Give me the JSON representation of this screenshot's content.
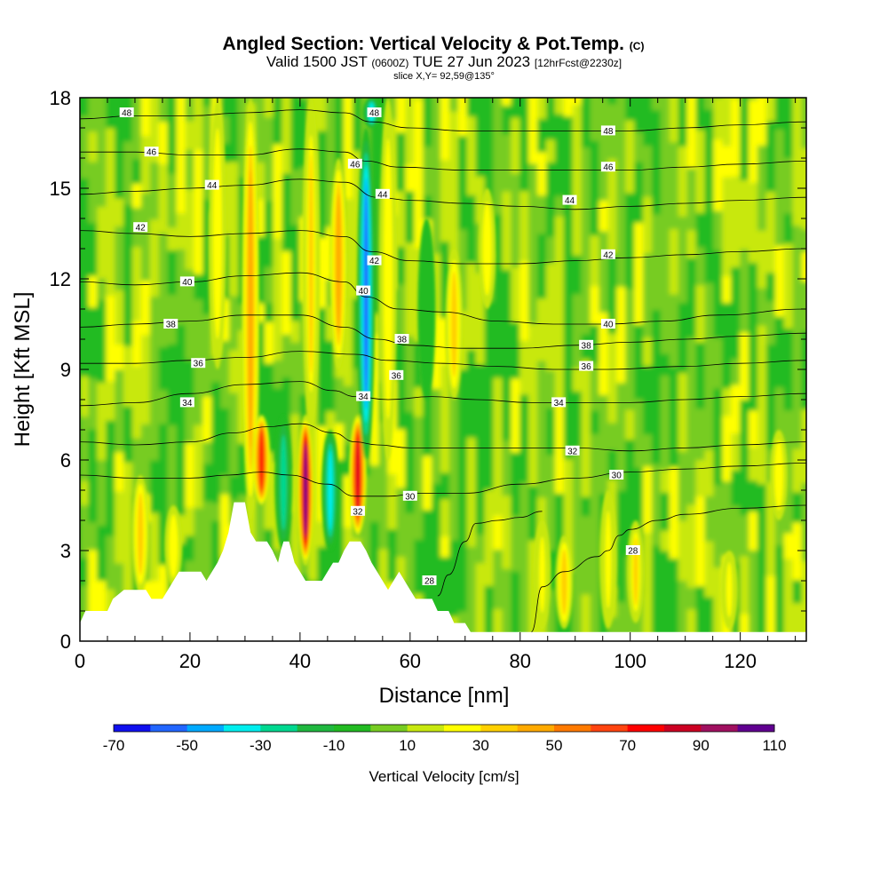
{
  "chart_data": {
    "type": "heatmap",
    "title": "Angled Section: Vertical Velocity & Pot.Temp.",
    "title_suffix": "(C)",
    "subtitle_valid": "Valid 1500 JST",
    "subtitle_zulu": "(0600Z)",
    "subtitle_date": "TUE 27 Jun 2023",
    "subtitle_fcst": "[12hrFcst@2230z]",
    "slice_label": "slice X,Y= 92,59@135°",
    "xlabel": "Distance [nm]",
    "ylabel": "Height [Kft MSL]",
    "xlim": [
      0,
      132
    ],
    "ylim": [
      0,
      18
    ],
    "x_ticks": [
      0,
      20,
      40,
      60,
      80,
      100,
      120
    ],
    "y_ticks": [
      0,
      3,
      6,
      9,
      12,
      15,
      18
    ],
    "x_tick_labels": [
      "0",
      "20",
      "40",
      "60",
      "80",
      "100",
      "120"
    ],
    "y_tick_labels": [
      "0",
      "3",
      "6",
      "9",
      "12",
      "15",
      "18"
    ],
    "colorbar": {
      "label": "Vertical Velocity [cm/s]",
      "min": -70,
      "max": 110,
      "step": 10,
      "tick_values": [
        -70,
        -50,
        -30,
        -10,
        10,
        30,
        50,
        70,
        90,
        110
      ],
      "tick_labels": [
        "-70",
        "-50",
        "-30",
        "-10",
        "10",
        "30",
        "50",
        "70",
        "90",
        "110"
      ],
      "colors": [
        "#1010ee",
        "#2266ff",
        "#00aaff",
        "#00eeee",
        "#00d890",
        "#20b840",
        "#22bb22",
        "#77cc22",
        "#c8e810",
        "#ffff00",
        "#ffd000",
        "#ffaa00",
        "#ff7a00",
        "#ff4410",
        "#ff0000",
        "#cc0022",
        "#a01060",
        "#600090"
      ]
    },
    "updrafts": [
      {
        "x": 11,
        "z0": 1.6,
        "z1": 5.5,
        "w": 30
      },
      {
        "x": 17,
        "z0": 1.8,
        "z1": 4.5,
        "w": 20
      },
      {
        "x": 25,
        "z0": 9,
        "z1": 18,
        "w": 20
      },
      {
        "x": 31,
        "z0": 4.0,
        "z1": 18,
        "w": 40
      },
      {
        "x": 33,
        "z0": 4.5,
        "z1": 7.5,
        "w": 70
      },
      {
        "x": 41,
        "z0": 2.5,
        "z1": 7.5,
        "w": 105
      },
      {
        "x": 42,
        "z0": 7,
        "z1": 18,
        "w": 35
      },
      {
        "x": 47,
        "z0": 9,
        "z1": 16,
        "w": 40
      },
      {
        "x": 50.5,
        "z0": 3.5,
        "z1": 7.5,
        "w": 80
      },
      {
        "x": 56,
        "z0": 6,
        "z1": 18,
        "w": 20
      },
      {
        "x": 68,
        "z0": 8,
        "z1": 13,
        "w": 30
      },
      {
        "x": 74,
        "z0": 11,
        "z1": 15,
        "w": 20
      },
      {
        "x": 84,
        "z0": 0.4,
        "z1": 4,
        "w": 25
      },
      {
        "x": 88,
        "z0": 0.4,
        "z1": 3.5,
        "w": 30
      },
      {
        "x": 96,
        "z0": 0.4,
        "z1": 5,
        "w": 25
      },
      {
        "x": 101,
        "z0": 0.6,
        "z1": 4,
        "w": 35
      },
      {
        "x": 118,
        "z0": 0.4,
        "z1": 3,
        "w": 25
      },
      {
        "x": 127,
        "z0": 4,
        "z1": 7,
        "w": 20
      }
    ],
    "downdrafts": [
      {
        "x": 37,
        "z0": 3,
        "z1": 7.5,
        "w": -30
      },
      {
        "x": 45.5,
        "z0": 3,
        "z1": 7,
        "w": -35
      },
      {
        "x": 52,
        "z0": 6,
        "z1": 17,
        "w": -60
      },
      {
        "x": 53,
        "z0": 17,
        "z1": 18,
        "w": -40
      },
      {
        "x": 63,
        "z0": 8,
        "z1": 14,
        "w": -10
      }
    ],
    "terrain": [
      [
        0,
        0.6
      ],
      [
        1,
        1.0
      ],
      [
        5,
        1.0
      ],
      [
        6,
        1.4
      ],
      [
        8,
        1.7
      ],
      [
        12,
        1.7
      ],
      [
        13,
        1.4
      ],
      [
        15,
        1.4
      ],
      [
        16,
        1.7
      ],
      [
        17,
        2.0
      ],
      [
        18,
        2.3
      ],
      [
        22,
        2.3
      ],
      [
        23,
        2.0
      ],
      [
        24,
        2.3
      ],
      [
        25,
        2.6
      ],
      [
        26,
        3.0
      ],
      [
        27,
        3.6
      ],
      [
        28,
        4.6
      ],
      [
        30,
        4.6
      ],
      [
        31,
        3.6
      ],
      [
        32,
        3.3
      ],
      [
        34,
        3.3
      ],
      [
        35,
        3.0
      ],
      [
        36,
        2.6
      ],
      [
        36.5,
        3.0
      ],
      [
        37,
        3.3
      ],
      [
        38,
        3.3
      ],
      [
        39,
        2.6
      ],
      [
        40,
        2.3
      ],
      [
        41,
        2.0
      ],
      [
        44,
        2.0
      ],
      [
        45,
        2.3
      ],
      [
        46,
        2.6
      ],
      [
        47,
        2.6
      ],
      [
        48,
        3.0
      ],
      [
        49,
        3.3
      ],
      [
        51,
        3.3
      ],
      [
        52,
        3.0
      ],
      [
        53,
        2.6
      ],
      [
        54,
        2.3
      ],
      [
        55,
        2.0
      ],
      [
        56,
        1.7
      ],
      [
        57,
        2.0
      ],
      [
        58,
        2.3
      ],
      [
        59,
        2.0
      ],
      [
        60,
        1.7
      ],
      [
        61,
        1.4
      ],
      [
        64,
        1.4
      ],
      [
        65,
        1.0
      ],
      [
        67,
        1.0
      ],
      [
        68,
        0.6
      ],
      [
        70,
        0.6
      ],
      [
        71,
        0.3
      ],
      [
        132,
        0.3
      ]
    ],
    "isentropes": [
      {
        "theta": 28,
        "pts": [
          [
            82,
            0.3
          ],
          [
            84,
            1.8
          ],
          [
            88,
            2.3
          ],
          [
            94,
            2.8
          ],
          [
            96,
            3.0
          ],
          [
            98,
            3.5
          ],
          [
            100,
            3.7
          ],
          [
            105,
            4.0
          ],
          [
            110,
            4.2
          ],
          [
            120,
            4.4
          ],
          [
            132,
            4.5
          ]
        ],
        "label": "28",
        "label_at": [
          3,
          100
        ]
      },
      {
        "theta": 28,
        "pts": [
          [
            65,
            1.5
          ],
          [
            67,
            2.2
          ],
          [
            70,
            3.3
          ],
          [
            72,
            3.9
          ],
          [
            76,
            4.0
          ],
          [
            80,
            4.1
          ],
          [
            84,
            4.3
          ]
        ],
        "label": "28",
        "label_at": [
          2.0,
          64.5
        ]
      },
      {
        "theta": 30,
        "pts": [
          [
            0,
            5.5
          ],
          [
            10,
            5.4
          ],
          [
            20,
            5.4
          ],
          [
            27,
            5.5
          ],
          [
            33,
            5.6
          ],
          [
            38,
            5.5
          ],
          [
            45,
            5.2
          ],
          [
            50,
            4.8
          ],
          [
            56,
            4.8
          ],
          [
            62,
            4.9
          ],
          [
            70,
            4.9
          ],
          [
            80,
            5.2
          ],
          [
            90,
            5.4
          ],
          [
            100,
            5.6
          ],
          [
            110,
            5.7
          ],
          [
            120,
            5.8
          ],
          [
            132,
            5.9
          ]
        ],
        "label": "30",
        "label_at": [
          4.8,
          59
        ]
      },
      {
        "theta": 32,
        "pts": [
          [
            0,
            6.6
          ],
          [
            10,
            6.5
          ],
          [
            20,
            6.6
          ],
          [
            28,
            6.9
          ],
          [
            34,
            7.1
          ],
          [
            40,
            7.2
          ],
          [
            46,
            6.9
          ],
          [
            50,
            6.6
          ],
          [
            54,
            6.5
          ],
          [
            60,
            6.4
          ],
          [
            70,
            6.4
          ],
          [
            80,
            6.4
          ],
          [
            90,
            6.4
          ],
          [
            100,
            6.3
          ],
          [
            110,
            6.4
          ],
          [
            120,
            6.5
          ],
          [
            132,
            6.6
          ]
        ],
        "label": "32",
        "label_at": [
          6.3,
          88
        ]
      },
      {
        "theta": 34,
        "pts": [
          [
            0,
            7.8
          ],
          [
            10,
            7.9
          ],
          [
            20,
            8.2
          ],
          [
            30,
            8.5
          ],
          [
            40,
            8.6
          ],
          [
            46,
            8.3
          ],
          [
            50,
            8.1
          ],
          [
            56,
            8.0
          ],
          [
            64,
            8.1
          ],
          [
            72,
            8.0
          ],
          [
            82,
            7.9
          ],
          [
            90,
            7.9
          ],
          [
            100,
            7.9
          ],
          [
            110,
            8.0
          ],
          [
            120,
            8.1
          ],
          [
            132,
            8.2
          ]
        ],
        "label": "34",
        "label_at": [
          7.9,
          87
        ]
      },
      {
        "theta": 36,
        "pts": [
          [
            0,
            9.2
          ],
          [
            10,
            9.2
          ],
          [
            20,
            9.3
          ],
          [
            30,
            9.4
          ],
          [
            40,
            9.6
          ],
          [
            50,
            9.5
          ],
          [
            56,
            9.3
          ],
          [
            66,
            9.2
          ],
          [
            76,
            9.1
          ],
          [
            86,
            9.0
          ],
          [
            96,
            9.0
          ],
          [
            110,
            9.1
          ],
          [
            120,
            9.2
          ],
          [
            132,
            9.3
          ]
        ],
        "label": "36",
        "label_at": [
          9.1,
          92
        ]
      },
      {
        "theta": 38,
        "pts": [
          [
            0,
            10.4
          ],
          [
            10,
            10.5
          ],
          [
            20,
            10.6
          ],
          [
            30,
            10.8
          ],
          [
            40,
            10.8
          ],
          [
            48,
            10.4
          ],
          [
            54,
            10.0
          ],
          [
            60,
            9.8
          ],
          [
            70,
            9.7
          ],
          [
            80,
            9.7
          ],
          [
            90,
            9.8
          ],
          [
            100,
            9.9
          ],
          [
            110,
            10.0
          ],
          [
            120,
            10.1
          ],
          [
            132,
            10.2
          ]
        ],
        "label": "38",
        "label_at": [
          9.8,
          92
        ]
      },
      {
        "theta": 40,
        "pts": [
          [
            0,
            11.9
          ],
          [
            10,
            11.8
          ],
          [
            20,
            11.9
          ],
          [
            30,
            12.1
          ],
          [
            40,
            12.2
          ],
          [
            48,
            11.9
          ],
          [
            52,
            11.4
          ],
          [
            58,
            11.0
          ],
          [
            66,
            10.9
          ],
          [
            76,
            10.6
          ],
          [
            86,
            10.5
          ],
          [
            96,
            10.5
          ],
          [
            106,
            10.6
          ],
          [
            116,
            10.8
          ],
          [
            132,
            11.0
          ]
        ],
        "label": "40",
        "label_at": [
          10.5,
          96
        ]
      },
      {
        "theta": 42,
        "pts": [
          [
            0,
            13.6
          ],
          [
            10,
            13.5
          ],
          [
            20,
            13.4
          ],
          [
            30,
            13.5
          ],
          [
            40,
            13.6
          ],
          [
            48,
            13.4
          ],
          [
            53,
            12.9
          ],
          [
            60,
            12.6
          ],
          [
            70,
            12.5
          ],
          [
            80,
            12.5
          ],
          [
            90,
            12.6
          ],
          [
            100,
            12.7
          ],
          [
            110,
            12.8
          ],
          [
            120,
            12.9
          ],
          [
            132,
            13.0
          ]
        ],
        "label": "42",
        "label_at": [
          12.8,
          96
        ]
      },
      {
        "theta": 44,
        "pts": [
          [
            0,
            14.8
          ],
          [
            10,
            14.9
          ],
          [
            20,
            15.0
          ],
          [
            30,
            15.1
          ],
          [
            40,
            15.3
          ],
          [
            48,
            15.2
          ],
          [
            54,
            14.7
          ],
          [
            60,
            14.6
          ],
          [
            70,
            14.5
          ],
          [
            80,
            14.4
          ],
          [
            90,
            14.3
          ],
          [
            100,
            14.4
          ],
          [
            110,
            14.5
          ],
          [
            120,
            14.6
          ],
          [
            132,
            14.7
          ]
        ],
        "label": "44",
        "label_at": [
          14.6,
          89
        ]
      },
      {
        "theta": 46,
        "pts": [
          [
            0,
            16.2
          ],
          [
            10,
            16.2
          ],
          [
            20,
            16.1
          ],
          [
            30,
            16.1
          ],
          [
            40,
            16.3
          ],
          [
            48,
            16.2
          ],
          [
            52,
            15.9
          ],
          [
            58,
            15.7
          ],
          [
            70,
            15.6
          ],
          [
            80,
            15.6
          ],
          [
            90,
            15.6
          ],
          [
            100,
            15.6
          ],
          [
            110,
            15.7
          ],
          [
            120,
            15.8
          ],
          [
            132,
            15.9
          ]
        ],
        "label": "46",
        "label_at": [
          15.7,
          96
        ]
      },
      {
        "theta": 48,
        "pts": [
          [
            0,
            17.3
          ],
          [
            10,
            17.4
          ],
          [
            20,
            17.4
          ],
          [
            30,
            17.5
          ],
          [
            40,
            17.6
          ],
          [
            48,
            17.5
          ],
          [
            53,
            17.2
          ],
          [
            60,
            17.0
          ],
          [
            70,
            16.9
          ],
          [
            80,
            16.9
          ],
          [
            90,
            16.9
          ],
          [
            100,
            16.9
          ],
          [
            110,
            17.0
          ],
          [
            120,
            17.1
          ],
          [
            132,
            17.2
          ]
        ],
        "label": "48",
        "label_at": [
          16.9,
          96
        ]
      }
    ],
    "contour_labels": [
      {
        "text": "48",
        "x": 8.5,
        "z": 17.5
      },
      {
        "text": "46",
        "x": 13,
        "z": 16.2
      },
      {
        "text": "44",
        "x": 24,
        "z": 15.1
      },
      {
        "text": "42",
        "x": 11,
        "z": 13.7
      },
      {
        "text": "40",
        "x": 19.5,
        "z": 11.9
      },
      {
        "text": "38",
        "x": 16.5,
        "z": 10.5
      },
      {
        "text": "36",
        "x": 21.5,
        "z": 9.2
      },
      {
        "text": "34",
        "x": 19.5,
        "z": 7.9
      },
      {
        "text": "48",
        "x": 53.5,
        "z": 17.5
      },
      {
        "text": "46",
        "x": 50,
        "z": 15.8
      },
      {
        "text": "44",
        "x": 55,
        "z": 14.8
      },
      {
        "text": "42",
        "x": 53.5,
        "z": 12.6
      },
      {
        "text": "40",
        "x": 51.5,
        "z": 11.6
      },
      {
        "text": "38",
        "x": 58.5,
        "z": 10.0
      },
      {
        "text": "36",
        "x": 57.5,
        "z": 8.8
      },
      {
        "text": "34",
        "x": 51.5,
        "z": 8.1
      },
      {
        "text": "32",
        "x": 50.5,
        "z": 4.3
      },
      {
        "text": "30",
        "x": 60,
        "z": 4.8
      },
      {
        "text": "28",
        "x": 63.5,
        "z": 2.0
      },
      {
        "text": "48",
        "x": 96,
        "z": 16.9
      },
      {
        "text": "46",
        "x": 96,
        "z": 15.7
      },
      {
        "text": "44",
        "x": 89,
        "z": 14.6
      },
      {
        "text": "42",
        "x": 96,
        "z": 12.8
      },
      {
        "text": "40",
        "x": 96,
        "z": 10.5
      },
      {
        "text": "38",
        "x": 92,
        "z": 9.8
      },
      {
        "text": "36",
        "x": 92,
        "z": 9.1
      },
      {
        "text": "34",
        "x": 87,
        "z": 7.9
      },
      {
        "text": "32",
        "x": 89.5,
        "z": 6.3
      },
      {
        "text": "30",
        "x": 97.5,
        "z": 5.5
      },
      {
        "text": "28",
        "x": 100.5,
        "z": 3.0
      }
    ]
  }
}
